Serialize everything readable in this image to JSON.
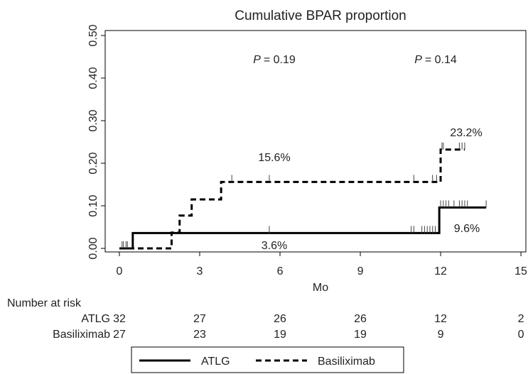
{
  "chart_data": {
    "type": "line",
    "title": "Cumulative BPAR proportion",
    "xlabel": "Mo",
    "ylabel": "",
    "xlim": [
      0,
      15
    ],
    "ylim": [
      0,
      0.5
    ],
    "x_ticks": [
      "0",
      "3",
      "6",
      "9",
      "12",
      "15"
    ],
    "y_ticks": [
      "0.00",
      "0.10",
      "0.20",
      "0.30",
      "0.40",
      "0.50"
    ],
    "grid": false,
    "legend_position": "bottom",
    "series": [
      {
        "name": "ATLG",
        "style": "solid",
        "color": "#000000",
        "steps": [
          [
            0,
            0
          ],
          [
            0.5,
            0.036
          ],
          [
            11.95,
            0.036
          ],
          [
            11.95,
            0.096
          ],
          [
            13.7,
            0.096
          ]
        ],
        "censor_x": [
          0.1,
          0.25,
          5.6,
          10.9,
          11.0,
          11.3,
          11.4,
          11.5,
          11.6,
          11.7,
          11.8,
          12.0,
          12.1,
          12.2,
          12.3,
          12.5,
          12.7,
          12.8,
          12.9,
          13.0,
          13.7
        ]
      },
      {
        "name": "Basiliximab",
        "style": "dashed",
        "color": "#000000",
        "steps": [
          [
            0,
            0
          ],
          [
            1.95,
            0
          ],
          [
            1.95,
            0.037
          ],
          [
            2.25,
            0.037
          ],
          [
            2.25,
            0.077
          ],
          [
            2.7,
            0.077
          ],
          [
            2.7,
            0.115
          ],
          [
            3.8,
            0.115
          ],
          [
            3.8,
            0.156
          ],
          [
            12.0,
            0.156
          ],
          [
            12.0,
            0.232
          ],
          [
            12.9,
            0.232
          ]
        ],
        "censor_x": [
          0.15,
          0.3,
          4.2,
          5.6,
          11.0,
          11.7,
          11.85,
          12.05,
          12.1,
          12.7,
          12.8,
          12.9
        ]
      }
    ],
    "annotations": {
      "p_label": "P",
      "p1": "= 0.19",
      "p2": "= 0.14",
      "basil_6mo": "15.6%",
      "basil_12mo": "23.2%",
      "atlg_6mo": "3.6%",
      "atlg_12mo": "9.6%"
    },
    "risk_table": {
      "title": "Number at risk",
      "rows": [
        {
          "label": "ATLG",
          "counts": [
            "32",
            "27",
            "26",
            "26",
            "12",
            "2"
          ]
        },
        {
          "label": "Basiliximab",
          "counts": [
            "27",
            "23",
            "19",
            "19",
            "9",
            "0"
          ]
        }
      ]
    }
  }
}
